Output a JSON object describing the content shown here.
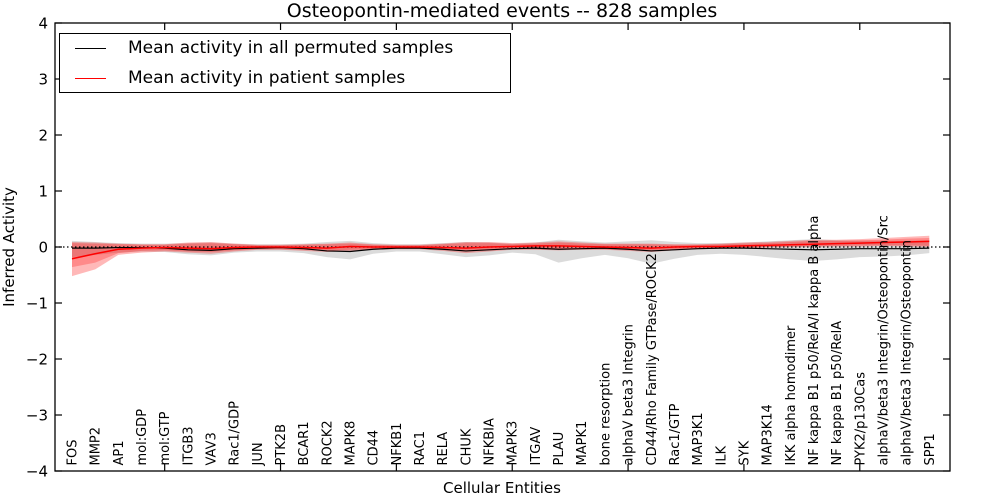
{
  "figure": {
    "title": "Osteopontin-mediated events -- 828 samples",
    "xlabel": "Cellular Entities",
    "ylabel": "Inferred Activity"
  },
  "legend": {
    "items": [
      {
        "label": "Mean activity in all permuted samples",
        "color": "#000000"
      },
      {
        "label": "Mean activity in patient samples",
        "color": "#ff0000"
      }
    ]
  },
  "chart_data": {
    "type": "line",
    "title": "Osteopontin-mediated events -- 828 samples",
    "xlabel": "Cellular Entities",
    "ylabel": "Inferred Activity",
    "ylim": [
      -4,
      4
    ],
    "yticks": [
      -4,
      -3,
      -2,
      -1,
      0,
      1,
      2,
      3,
      4
    ],
    "ytick_labels": [
      "−4",
      "−3",
      "−2",
      "−1",
      "0",
      "1",
      "2",
      "3",
      "4"
    ],
    "x_major_tick_indices": [
      4,
      9,
      14,
      19,
      24,
      29,
      34
    ],
    "zero_line": true,
    "grid": false,
    "legend_position": "upper left",
    "categories": [
      "FOS",
      "MMP2",
      "AP1",
      "mol:GDP",
      "mol:GTP",
      "ITGB3",
      "VAV3",
      "Rac1/GDP",
      "JUN",
      "PTK2B",
      "BCAR1",
      "ROCK2",
      "MAPK8",
      "CD44",
      "NFKB1",
      "RAC1",
      "RELA",
      "CHUK",
      "NFKBIA",
      "MAPK3",
      "ITGAV",
      "PLAU",
      "MAPK1",
      "bone resorption",
      "alphaV beta3 Integrin",
      "CD44/Rho Family GTPase/ROCK2",
      "Rac1/GTP",
      "MAP3K1",
      "ILK",
      "SYK",
      "MAP3K14",
      "IKK alpha homodimer",
      "NF kappa B1 p50/RelA/I kappa B alpha",
      "NF kappa B1 p50/RelA",
      "PYK2/p130Cas",
      "alphaV/beta3 Integrin/Osteopontin/Src",
      "alphaV/beta3 Integrin/Osteopontin",
      "SPP1"
    ],
    "series": [
      {
        "name": "Mean activity in all permuted samples",
        "color": "#000000",
        "line_width": 1.2,
        "band_color": "#999999",
        "band_opacity": 0.35,
        "values": [
          -0.02,
          -0.02,
          -0.01,
          -0.01,
          -0.02,
          -0.05,
          -0.06,
          -0.03,
          -0.02,
          -0.01,
          -0.03,
          -0.07,
          -0.08,
          -0.04,
          -0.02,
          -0.02,
          -0.04,
          -0.07,
          -0.05,
          -0.03,
          -0.02,
          -0.04,
          -0.03,
          -0.02,
          -0.04,
          -0.07,
          -0.05,
          -0.03,
          -0.02,
          -0.02,
          -0.03,
          -0.04,
          -0.05,
          -0.04,
          -0.03,
          -0.03,
          -0.03,
          -0.02
        ],
        "band_upper": [
          0.11,
          0.09,
          0.07,
          0.06,
          0.06,
          0.07,
          0.08,
          0.06,
          0.05,
          0.05,
          0.06,
          0.09,
          0.11,
          0.07,
          0.05,
          0.05,
          0.07,
          0.09,
          0.08,
          0.06,
          0.08,
          0.13,
          0.1,
          0.08,
          0.1,
          0.12,
          0.09,
          0.07,
          0.07,
          0.08,
          0.1,
          0.12,
          0.14,
          0.12,
          0.11,
          0.11,
          0.11,
          0.12
        ],
        "band_lower": [
          -0.18,
          -0.14,
          -0.1,
          -0.08,
          -0.09,
          -0.13,
          -0.15,
          -0.1,
          -0.08,
          -0.08,
          -0.11,
          -0.18,
          -0.22,
          -0.12,
          -0.08,
          -0.08,
          -0.13,
          -0.18,
          -0.15,
          -0.1,
          -0.13,
          -0.28,
          -0.2,
          -0.14,
          -0.2,
          -0.3,
          -0.21,
          -0.14,
          -0.12,
          -0.14,
          -0.18,
          -0.22,
          -0.25,
          -0.22,
          -0.18,
          -0.17,
          -0.15,
          -0.11
        ]
      },
      {
        "name": "Mean activity in patient samples",
        "color": "#ff0000",
        "line_width": 1.5,
        "band_color": "#ff0000",
        "band_opacity": 0.28,
        "values": [
          -0.21,
          -0.12,
          -0.04,
          -0.02,
          -0.01,
          -0.02,
          -0.03,
          -0.01,
          0.0,
          0.0,
          -0.01,
          -0.02,
          0.01,
          0.0,
          0.0,
          0.0,
          -0.01,
          -0.02,
          0.0,
          0.01,
          0.02,
          0.02,
          0.01,
          0.0,
          -0.01,
          -0.02,
          0.0,
          0.01,
          0.01,
          0.02,
          0.03,
          0.04,
          0.05,
          0.06,
          0.07,
          0.08,
          0.09,
          0.1
        ],
        "band_upper": [
          0.09,
          0.08,
          0.06,
          0.05,
          0.05,
          0.08,
          0.09,
          0.06,
          0.04,
          0.04,
          0.05,
          0.06,
          0.08,
          0.05,
          0.04,
          0.04,
          0.06,
          0.09,
          0.09,
          0.07,
          0.08,
          0.1,
          0.08,
          0.06,
          0.06,
          0.06,
          0.05,
          0.05,
          0.06,
          0.08,
          0.09,
          0.11,
          0.13,
          0.13,
          0.14,
          0.16,
          0.18,
          0.2
        ],
        "band_lower": [
          -0.52,
          -0.4,
          -0.14,
          -0.1,
          -0.08,
          -0.1,
          -0.12,
          -0.08,
          -0.05,
          -0.05,
          -0.07,
          -0.09,
          -0.07,
          -0.05,
          -0.04,
          -0.04,
          -0.07,
          -0.11,
          -0.08,
          -0.05,
          -0.05,
          -0.06,
          -0.05,
          -0.05,
          -0.07,
          -0.09,
          -0.06,
          -0.04,
          -0.03,
          -0.02,
          -0.01,
          0.0,
          0.0,
          0.01,
          0.01,
          0.02,
          0.01,
          0.0
        ],
        "band_inner_opacity": 0.25,
        "band_inner_upper": [
          0.07,
          0.06,
          0.05,
          0.04,
          0.04,
          0.06,
          0.07,
          0.05,
          0.03,
          0.03,
          0.04,
          0.05,
          0.06,
          0.04,
          0.03,
          0.03,
          0.05,
          0.07,
          0.07,
          0.05,
          0.06,
          0.08,
          0.06,
          0.05,
          0.05,
          0.05,
          0.04,
          0.04,
          0.05,
          0.06,
          0.07,
          0.09,
          0.11,
          0.11,
          0.12,
          0.13,
          0.15,
          0.16
        ],
        "band_inner_lower": [
          -0.36,
          -0.28,
          -0.11,
          -0.07,
          -0.06,
          -0.08,
          -0.09,
          -0.06,
          -0.04,
          -0.04,
          -0.05,
          -0.07,
          -0.05,
          -0.04,
          -0.03,
          -0.03,
          -0.05,
          -0.08,
          -0.06,
          -0.04,
          -0.04,
          -0.05,
          -0.04,
          -0.04,
          -0.05,
          -0.07,
          -0.05,
          -0.03,
          -0.02,
          -0.01,
          0.0,
          0.01,
          0.02,
          0.02,
          0.03,
          0.03,
          0.03,
          0.02
        ]
      }
    ]
  }
}
